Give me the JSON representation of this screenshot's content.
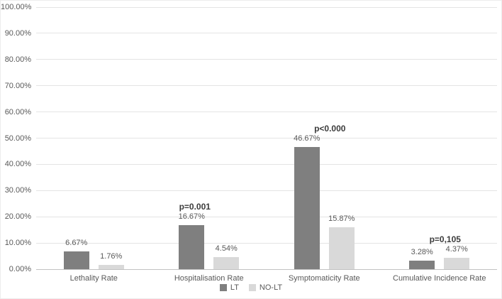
{
  "chart_data": {
    "type": "bar",
    "title": "",
    "categories": [
      "Lethality Rate",
      "Hospitalisation Rate",
      "Symptomaticity Rate",
      "Cumulative Incidence Rate"
    ],
    "series": [
      {
        "name": "LT",
        "color": "#7f7f7f",
        "values": [
          6.67,
          16.67,
          46.67,
          3.28
        ],
        "labels": [
          "6.67%",
          "16.67%",
          "46.67%",
          "3.28%"
        ]
      },
      {
        "name": "NO-LT",
        "color": "#d9d9d9",
        "values": [
          1.76,
          4.54,
          15.87,
          4.37
        ],
        "labels": [
          "1.76%",
          "4.54%",
          "15.87%",
          "4.37%"
        ]
      }
    ],
    "annotations": [
      {
        "category_index": 1,
        "text": "p=0.001"
      },
      {
        "category_index": 2,
        "text": "p<0.000"
      },
      {
        "category_index": 3,
        "text": "p=0,105"
      }
    ],
    "y_axis": {
      "min": 0,
      "max": 100,
      "tick_step": 10,
      "tick_labels": [
        "0.00%",
        "10.00%",
        "20.00%",
        "30.00%",
        "40.00%",
        "50.00%",
        "60.00%",
        "70.00%",
        "80.00%",
        "90.00%",
        "100.00%"
      ]
    },
    "legend": {
      "position": "bottom",
      "entries": [
        "LT",
        "NO-LT"
      ]
    },
    "grid": true,
    "colors": {
      "grid_line": "#e4e4e4",
      "axis_line": "#c2c2c2",
      "tick_text": "#595959",
      "label_text": "#595959",
      "annotation_text": "#3b3b3b",
      "series_lt": "#7f7f7f",
      "series_no_lt": "#d9d9d9"
    }
  }
}
